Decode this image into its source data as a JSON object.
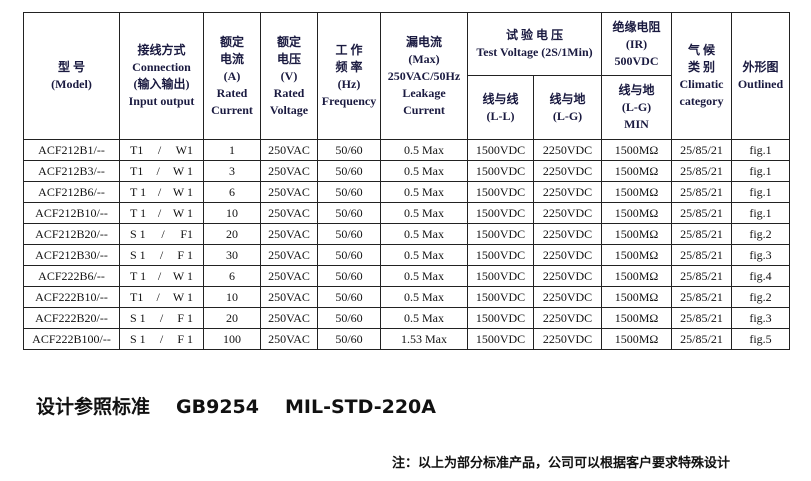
{
  "header": {
    "model": [
      "型 号",
      "(Model)"
    ],
    "connection": [
      "接线方式",
      "Connection",
      "(输入输出)",
      "Input output"
    ],
    "current": [
      "额定",
      "电流",
      "(A)",
      "Rated",
      "Current"
    ],
    "voltage": [
      "额定",
      "电压",
      "(V)",
      "Rated",
      "Voltage"
    ],
    "frequency": [
      "工 作",
      "频 率",
      "(Hz)",
      "Frequency"
    ],
    "leakage": [
      "漏电流",
      "(Max)",
      "250VAC/50Hz",
      "Leakage",
      "Current"
    ],
    "test_voltage": [
      "试 验 电 压",
      "Test Voltage (2S/1Min)"
    ],
    "ll": [
      "线与线",
      "(L-L)"
    ],
    "lg": [
      "线与地",
      "(L-G)"
    ],
    "ir": [
      "绝缘电阻",
      "(IR)",
      "500VDC"
    ],
    "ir_sub": [
      "线与地",
      "(L-G)",
      "MIN"
    ],
    "climatic": [
      "气 候",
      "类 别",
      "Climatic",
      "category"
    ],
    "outline": [
      "外形图",
      "Outlined"
    ]
  },
  "rows": [
    {
      "model": "ACF212B1/--",
      "in": "T1",
      "out": "W1",
      "current": "1",
      "voltage": "250VAC",
      "freq": "50/60",
      "leak": "0.5 Max",
      "ll": "1500VDC",
      "lg": "2250VDC",
      "ir": "1500MΩ",
      "clim": "25/85/21",
      "fig": "fig.1"
    },
    {
      "model": "ACF212B3/--",
      "in": "T1",
      "out": "W 1",
      "current": "3",
      "voltage": "250VAC",
      "freq": "50/60",
      "leak": "0.5 Max",
      "ll": "1500VDC",
      "lg": "2250VDC",
      "ir": "1500MΩ",
      "clim": "25/85/21",
      "fig": "fig.1"
    },
    {
      "model": "ACF212B6/--",
      "in": "T 1",
      "out": "W 1",
      "current": "6",
      "voltage": "250VAC",
      "freq": "50/60",
      "leak": "0.5 Max",
      "ll": "1500VDC",
      "lg": "2250VDC",
      "ir": "1500MΩ",
      "clim": "25/85/21",
      "fig": "fig.1"
    },
    {
      "model": "ACF212B10/--",
      "in": "T 1",
      "out": "W 1",
      "current": "10",
      "voltage": "250VAC",
      "freq": "50/60",
      "leak": "0.5 Max",
      "ll": "1500VDC",
      "lg": "2250VDC",
      "ir": "1500MΩ",
      "clim": "25/85/21",
      "fig": "fig.1"
    },
    {
      "model": "ACF212B20/--",
      "in": "S 1",
      "out": "F1",
      "current": "20",
      "voltage": "250VAC",
      "freq": "50/60",
      "leak": "0.5 Max",
      "ll": "1500VDC",
      "lg": "2250VDC",
      "ir": "1500MΩ",
      "clim": "25/85/21",
      "fig": "fig.2"
    },
    {
      "model": "ACF212B30/--",
      "in": "S 1",
      "out": "F 1",
      "current": "30",
      "voltage": "250VAC",
      "freq": "50/60",
      "leak": "0.5 Max",
      "ll": "1500VDC",
      "lg": "2250VDC",
      "ir": "1500MΩ",
      "clim": "25/85/21",
      "fig": "fig.3"
    },
    {
      "model": "ACF222B6/--",
      "in": "T 1",
      "out": "W 1",
      "current": "6",
      "voltage": "250VAC",
      "freq": "50/60",
      "leak": "0.5 Max",
      "ll": "1500VDC",
      "lg": "2250VDC",
      "ir": "1500MΩ",
      "clim": "25/85/21",
      "fig": "fig.4"
    },
    {
      "model": "ACF222B10/--",
      "in": "T1",
      "out": "W 1",
      "current": "10",
      "voltage": "250VAC",
      "freq": "50/60",
      "leak": "0.5 Max",
      "ll": "1500VDC",
      "lg": "2250VDC",
      "ir": "1500MΩ",
      "clim": "25/85/21",
      "fig": "fig.2"
    },
    {
      "model": "ACF222B20/--",
      "in": "S 1",
      "out": "F 1",
      "current": "20",
      "voltage": "250VAC",
      "freq": "50/60",
      "leak": "0.5 Max",
      "ll": "1500VDC",
      "lg": "2250VDC",
      "ir": "1500MΩ",
      "clim": "25/85/21",
      "fig": "fig.3"
    },
    {
      "model": "ACF222B100/--",
      "in": "S 1",
      "out": "F 1",
      "current": "100",
      "voltage": "250VAC",
      "freq": "50/60",
      "leak": "1.53 Max",
      "ll": "1500VDC",
      "lg": "2250VDC",
      "ir": "1500MΩ",
      "clim": "25/85/21",
      "fig": "fig.5"
    }
  ],
  "separator": "/",
  "standards": [
    "设计参照标准",
    "GB9254",
    "MIL-STD-220A"
  ],
  "note": "注：以上为部分标准产品，公司可以根据客户要求特殊设计"
}
